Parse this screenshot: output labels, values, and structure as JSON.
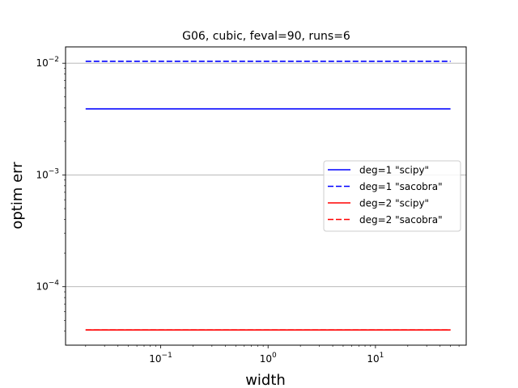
{
  "chart_data": {
    "type": "line",
    "title": "G06, cubic, feval=90, runs=6",
    "xlabel": "width",
    "ylabel": "optim err",
    "xscale": "log",
    "yscale": "log",
    "xlim": [
      0.013,
      70
    ],
    "ylim": [
      3e-05,
      0.014
    ],
    "x_ticks": [
      {
        "value": 0.1,
        "label": "10",
        "exp": "−1"
      },
      {
        "value": 1,
        "label": "10",
        "exp": "0"
      },
      {
        "value": 10,
        "label": "10",
        "exp": "1"
      }
    ],
    "y_ticks": [
      {
        "value": 0.0001,
        "label": "10",
        "exp": "−4"
      },
      {
        "value": 0.001,
        "label": "10",
        "exp": "−3"
      },
      {
        "value": 0.01,
        "label": "10",
        "exp": "−2"
      }
    ],
    "grid": "y-major",
    "legend_position": "center-right",
    "series": [
      {
        "name": "deg=1 \"scipy\"",
        "color": "#0000ff",
        "dash": "solid",
        "x": [
          0.02,
          50
        ],
        "y": [
          0.0039,
          0.0039
        ]
      },
      {
        "name": "deg=1 \"sacobra\"",
        "color": "#0000ff",
        "dash": "dashed",
        "x": [
          0.02,
          50
        ],
        "y": [
          0.0104,
          0.0104
        ]
      },
      {
        "name": "deg=2 \"scipy\"",
        "color": "#ff0000",
        "dash": "solid",
        "x": [
          0.02,
          50
        ],
        "y": [
          4.1e-05,
          4.1e-05
        ]
      },
      {
        "name": "deg=2 \"sacobra\"",
        "color": "#ff0000",
        "dash": "dashed",
        "x": [
          0.02,
          50
        ],
        "y": [
          4.1e-05,
          4.1e-05
        ]
      }
    ]
  }
}
